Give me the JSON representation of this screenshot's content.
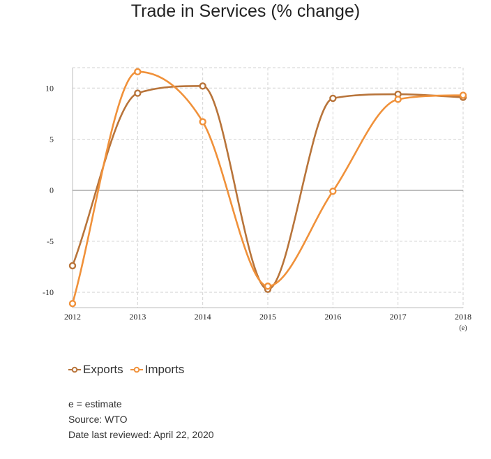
{
  "chart_data": {
    "type": "line",
    "title": "Trade in Services (% change)",
    "categories": [
      "2012",
      "2013",
      "2014",
      "2015",
      "2016",
      "2017",
      "2018"
    ],
    "category_sublabels": {
      "2018": "(e)"
    },
    "ylim": [
      -11.5,
      12
    ],
    "yticks": [
      -10,
      -5,
      0,
      5,
      10
    ],
    "grid": true,
    "legend": "bottom-left",
    "series": [
      {
        "name": "Exports",
        "color": "#b8743a",
        "values": [
          -7.4,
          9.5,
          10.2,
          -9.7,
          9.0,
          9.4,
          9.1
        ]
      },
      {
        "name": "Imports",
        "color": "#f0913a",
        "values": [
          -11.1,
          11.6,
          6.7,
          -9.4,
          -0.1,
          8.9,
          9.3
        ]
      }
    ]
  },
  "legend": {
    "exports_label": "Exports",
    "imports_label": "Imports"
  },
  "notes": {
    "estimate": "e = estimate",
    "source": "Source: WTO",
    "reviewed": "Date last reviewed: April 22, 2020"
  }
}
